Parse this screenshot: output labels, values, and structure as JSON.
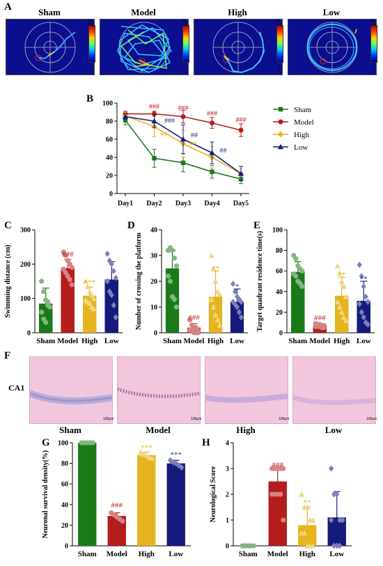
{
  "panels": {
    "A": "A",
    "B": "B",
    "C": "C",
    "D": "D",
    "E": "E",
    "F": "F",
    "G": "G",
    "H": "H"
  },
  "track_titles": [
    "Sham",
    "Model",
    "High",
    "Low"
  ],
  "colorbar": {
    "max": "MAX",
    "min": "0"
  },
  "region_label": "CA1",
  "scale_label": "100μm",
  "colors": {
    "Sham": "#1a7a1a",
    "Model": "#b51c1c",
    "High": "#e6b41e",
    "Low": "#151a7c",
    "annot_model": "#c02020",
    "annot_high": "#e6b41e",
    "annot_low": "#1a2a9c"
  },
  "chart_data": [
    {
      "id": "B",
      "type": "line",
      "categories": [
        "Day1",
        "Day2",
        "Day3",
        "Day4",
        "Day5"
      ],
      "ylim": [
        0,
        100
      ],
      "yticks": [
        0,
        20,
        40,
        60,
        80,
        100
      ],
      "series": [
        {
          "name": "Sham",
          "values": [
            81,
            39,
            34,
            24,
            16
          ],
          "err": [
            5,
            10,
            10,
            7,
            5
          ],
          "marker": "square"
        },
        {
          "name": "Model",
          "values": [
            88,
            88,
            85,
            78,
            70
          ],
          "err": [
            3,
            3,
            7,
            6,
            7
          ],
          "marker": "circle"
        },
        {
          "name": "High",
          "values": [
            86,
            74,
            55,
            40,
            22
          ],
          "err": [
            4,
            11,
            15,
            12,
            5
          ],
          "marker": "diamond"
        },
        {
          "name": "Low",
          "values": [
            85,
            80,
            60,
            45,
            22
          ],
          "err": [
            3,
            7,
            16,
            12,
            8
          ],
          "marker": "triangle"
        }
      ],
      "annotations": [
        {
          "text": "###",
          "x": "Day2",
          "y": 94,
          "color": "annot_model"
        },
        {
          "text": "###",
          "x": "Day3",
          "y": 92,
          "color": "annot_model"
        },
        {
          "text": "###",
          "x": "Day4",
          "y": 86,
          "color": "annot_model"
        },
        {
          "text": "###",
          "x": "Day5",
          "y": 79,
          "color": "annot_model"
        },
        {
          "text": "###",
          "x": "Day2",
          "y": 78,
          "color": "annot_low",
          "dx": 22
        },
        {
          "text": "##",
          "x": "Day2",
          "y": 63,
          "color": "annot_high",
          "dx": 14
        },
        {
          "text": "##",
          "x": "Day3",
          "y": 62,
          "color": "annot_low",
          "dx": 16
        },
        {
          "text": "##",
          "x": "Day3",
          "y": 53,
          "color": "annot_high",
          "dx": 14
        },
        {
          "text": "##",
          "x": "Day4",
          "y": 45,
          "color": "annot_low",
          "dx": 16
        }
      ]
    },
    {
      "id": "C",
      "type": "bar",
      "ylabel": "Swimming distance (cm)",
      "categories": [
        "Sham",
        "Model",
        "High",
        "Low"
      ],
      "values": [
        85,
        188,
        108,
        155
      ],
      "err": [
        45,
        25,
        25,
        52
      ],
      "ylim": [
        0,
        300
      ],
      "yticks": [
        0,
        100,
        200,
        300
      ],
      "points": [
        [
          150,
          120,
          95,
          80,
          75,
          60,
          40,
          30,
          90
        ],
        [
          235,
          225,
          210,
          200,
          190,
          185,
          175,
          165,
          155,
          140
        ],
        [
          150,
          135,
          120,
          110,
          100,
          95,
          90,
          85,
          75,
          70
        ],
        [
          230,
          210,
          200,
          180,
          160,
          150,
          120,
          110,
          80,
          45
        ]
      ],
      "annotations": [
        {
          "cat": "Model",
          "text": "###",
          "y": 222,
          "color": "annot_model"
        },
        {
          "cat": "High",
          "text": "***",
          "y": 140,
          "color": "annot_high"
        }
      ]
    },
    {
      "id": "D",
      "type": "bar",
      "ylabel": "Number of crossing the platform",
      "categories": [
        "Sham",
        "Model",
        "High",
        "Low"
      ],
      "values": [
        25,
        2,
        14,
        12
      ],
      "err": [
        7,
        1.5,
        10,
        5
      ],
      "ylim": [
        0,
        40
      ],
      "yticks": [
        0,
        10,
        20,
        30,
        40
      ],
      "points": [
        [
          32,
          33,
          32,
          29,
          26,
          22,
          20,
          14,
          13,
          10
        ],
        [
          5,
          3,
          2,
          2,
          1,
          1,
          1,
          0,
          0,
          0
        ],
        [
          30,
          25,
          20,
          16,
          15,
          13,
          10,
          7,
          5,
          3
        ],
        [
          19,
          16,
          14,
          13,
          12,
          12,
          11,
          10,
          8,
          6
        ]
      ],
      "annotations": [
        {
          "cat": "Model",
          "text": "###",
          "y": 5,
          "color": "annot_model"
        },
        {
          "cat": "High",
          "text": "**",
          "y": 24,
          "color": "annot_high"
        },
        {
          "cat": "Low",
          "text": "*",
          "y": 17,
          "color": "annot_low"
        }
      ]
    },
    {
      "id": "E",
      "type": "bar",
      "ylabel": "Target quadrant residence time(s)",
      "categories": [
        "Sham",
        "Model",
        "High",
        "Low"
      ],
      "values": [
        59,
        7,
        36,
        31
      ],
      "err": [
        10,
        1,
        18,
        19
      ],
      "ylim": [
        0,
        100
      ],
      "yticks": [
        0,
        20,
        40,
        60,
        80,
        100
      ],
      "points": [
        [
          75,
          72,
          65,
          62,
          60,
          57,
          55,
          50,
          48,
          45
        ],
        [
          9,
          8,
          8,
          7,
          7,
          6,
          6,
          6,
          5,
          5
        ],
        [
          65,
          58,
          50,
          45,
          35,
          30,
          25,
          20,
          15,
          12
        ],
        [
          66,
          55,
          45,
          35,
          30,
          28,
          20,
          15,
          10,
          8
        ]
      ],
      "annotations": [
        {
          "cat": "Model",
          "text": "###",
          "y": 12,
          "color": "annot_model"
        },
        {
          "cat": "High",
          "text": "**",
          "y": 54,
          "color": "annot_high"
        },
        {
          "cat": "Low",
          "text": "**",
          "y": 50,
          "color": "annot_low"
        }
      ]
    },
    {
      "id": "G",
      "type": "bar",
      "ylabel": "Neuronal survival density(%)",
      "categories": [
        "Sham",
        "Model",
        "High",
        "Low"
      ],
      "values": [
        100,
        29,
        88,
        80
      ],
      "err": [
        0.5,
        3,
        3,
        3
      ],
      "ylim": [
        0,
        100
      ],
      "yticks": [
        0,
        20,
        40,
        60,
        80,
        100
      ],
      "points": [
        [
          100,
          100,
          100,
          100,
          100
        ],
        [
          32,
          30,
          28,
          26,
          24
        ],
        [
          91,
          89,
          88,
          86,
          85
        ],
        [
          83,
          81,
          80,
          78,
          76
        ]
      ],
      "annotations": [
        {
          "cat": "Model",
          "text": "###",
          "y": 37,
          "color": "annot_model"
        },
        {
          "cat": "High",
          "text": "***",
          "y": 93,
          "color": "annot_high"
        },
        {
          "cat": "Low",
          "text": "***",
          "y": 86,
          "color": "annot_low"
        }
      ]
    },
    {
      "id": "H",
      "type": "bar",
      "ylabel": "Neurological Score",
      "categories": [
        "Sham",
        "Model",
        "High",
        "Low"
      ],
      "values": [
        0,
        2.5,
        0.8,
        1.1
      ],
      "err": [
        0,
        0.5,
        0.7,
        1.0
      ],
      "ylim": [
        0,
        4
      ],
      "yticks": [
        0,
        1,
        2,
        3,
        4
      ],
      "points": [
        [
          0,
          0,
          0,
          0,
          0,
          0,
          0,
          0
        ],
        [
          3,
          3,
          3,
          3,
          3,
          2,
          2,
          2,
          2,
          1
        ],
        [
          2,
          1.5,
          1.5,
          1,
          1,
          0.5,
          0.5,
          0,
          0,
          0
        ],
        [
          3,
          2,
          2,
          1,
          1,
          1,
          0,
          0,
          0,
          1
        ]
      ],
      "annotations": [
        {
          "cat": "Model",
          "text": "###",
          "y": 3.05,
          "color": "annot_model"
        },
        {
          "cat": "High",
          "text": "**",
          "y": 1.6,
          "color": "annot_high"
        }
      ]
    }
  ]
}
